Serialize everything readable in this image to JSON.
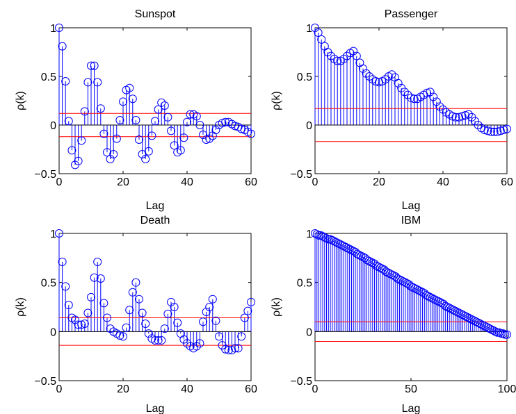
{
  "figure": {
    "line_color": "#0000ff",
    "bound_color": "#ff0000",
    "axis_color": "#000000",
    "background": "#ffffff"
  },
  "chart_data": [
    {
      "type": "stem",
      "title": "Sunspot",
      "xlabel": "Lag",
      "ylabel": "ρ(k)",
      "xlim": [
        0,
        60
      ],
      "ylim": [
        -0.5,
        1
      ],
      "xticks": [
        0,
        20,
        40,
        60
      ],
      "yticks": [
        -0.5,
        0,
        0.5,
        1
      ],
      "xtick_labels": [
        "0",
        "20",
        "40",
        "60"
      ],
      "ytick_labels": [
        "−0.5",
        "0",
        "0.5",
        "1"
      ],
      "confidence_bounds": [
        0.12,
        -0.12
      ],
      "x": [
        0,
        1,
        2,
        3,
        4,
        5,
        6,
        7,
        8,
        9,
        10,
        11,
        12,
        13,
        14,
        15,
        16,
        17,
        18,
        19,
        20,
        21,
        22,
        23,
        24,
        25,
        26,
        27,
        28,
        29,
        30,
        31,
        32,
        33,
        34,
        35,
        36,
        37,
        38,
        39,
        40,
        41,
        42,
        43,
        44,
        45,
        46,
        47,
        48,
        49,
        50,
        51,
        52,
        53,
        54,
        55,
        56,
        57,
        58,
        59,
        60
      ],
      "values": [
        1.0,
        0.81,
        0.45,
        0.04,
        -0.26,
        -0.41,
        -0.37,
        -0.16,
        0.14,
        0.44,
        0.61,
        0.61,
        0.44,
        0.17,
        -0.09,
        -0.28,
        -0.35,
        -0.3,
        -0.14,
        0.05,
        0.24,
        0.36,
        0.38,
        0.27,
        0.05,
        -0.15,
        -0.3,
        -0.35,
        -0.27,
        -0.11,
        0.04,
        0.16,
        0.23,
        0.2,
        0.08,
        -0.06,
        -0.21,
        -0.28,
        -0.26,
        -0.13,
        0.03,
        0.11,
        0.11,
        0.09,
        0.0,
        -0.1,
        -0.15,
        -0.14,
        -0.11,
        -0.05,
        0.0,
        0.02,
        0.03,
        0.03,
        0.01,
        -0.01,
        -0.02,
        -0.04,
        -0.05,
        -0.07,
        -0.09
      ]
    },
    {
      "type": "stem",
      "title": "Passenger",
      "xlabel": "Lag",
      "ylabel": "ρ(k)",
      "xlim": [
        0,
        60
      ],
      "ylim": [
        -0.5,
        1
      ],
      "xticks": [
        0,
        20,
        40,
        60
      ],
      "yticks": [
        -0.5,
        0,
        0.5,
        1
      ],
      "xtick_labels": [
        "0",
        "20",
        "40",
        "60"
      ],
      "ytick_labels": [
        "−0.5",
        "0",
        "0.5",
        "1"
      ],
      "confidence_bounds": [
        0.17,
        -0.17
      ],
      "x": [
        0,
        1,
        2,
        3,
        4,
        5,
        6,
        7,
        8,
        9,
        10,
        11,
        12,
        13,
        14,
        15,
        16,
        17,
        18,
        19,
        20,
        21,
        22,
        23,
        24,
        25,
        26,
        27,
        28,
        29,
        30,
        31,
        32,
        33,
        34,
        35,
        36,
        37,
        38,
        39,
        40,
        41,
        42,
        43,
        44,
        45,
        46,
        47,
        48,
        49,
        50,
        51,
        52,
        53,
        54,
        55,
        56,
        57,
        58,
        59,
        60
      ],
      "values": [
        1.0,
        0.95,
        0.88,
        0.81,
        0.75,
        0.71,
        0.68,
        0.66,
        0.66,
        0.68,
        0.71,
        0.74,
        0.76,
        0.71,
        0.64,
        0.58,
        0.53,
        0.5,
        0.47,
        0.45,
        0.44,
        0.45,
        0.47,
        0.5,
        0.52,
        0.49,
        0.43,
        0.38,
        0.34,
        0.31,
        0.28,
        0.27,
        0.27,
        0.29,
        0.31,
        0.33,
        0.34,
        0.29,
        0.24,
        0.19,
        0.16,
        0.13,
        0.11,
        0.09,
        0.08,
        0.08,
        0.09,
        0.1,
        0.11,
        0.08,
        0.04,
        0.0,
        -0.03,
        -0.05,
        -0.06,
        -0.07,
        -0.07,
        -0.07,
        -0.06,
        -0.05,
        -0.04
      ]
    },
    {
      "type": "stem",
      "title": "Death",
      "xlabel": "Lag",
      "ylabel": "ρ(k)",
      "xlim": [
        0,
        60
      ],
      "ylim": [
        -0.5,
        1
      ],
      "xticks": [
        0,
        20,
        40,
        60
      ],
      "yticks": [
        -0.5,
        0,
        0.5,
        1
      ],
      "xtick_labels": [
        "0",
        "20",
        "40",
        "60"
      ],
      "ytick_labels": [
        "−0.5",
        "0",
        "0.5",
        "1"
      ],
      "confidence_bounds": [
        0.14,
        -0.14
      ],
      "x": [
        0,
        1,
        2,
        3,
        4,
        5,
        6,
        7,
        8,
        9,
        10,
        11,
        12,
        13,
        14,
        15,
        16,
        17,
        18,
        19,
        20,
        21,
        22,
        23,
        24,
        25,
        26,
        27,
        28,
        29,
        30,
        31,
        32,
        33,
        34,
        35,
        36,
        37,
        38,
        39,
        40,
        41,
        42,
        43,
        44,
        45,
        46,
        47,
        48,
        49,
        50,
        51,
        52,
        53,
        54,
        55,
        56,
        57,
        58,
        59,
        60
      ],
      "values": [
        1.0,
        0.71,
        0.46,
        0.27,
        0.14,
        0.12,
        0.07,
        0.07,
        0.08,
        0.19,
        0.35,
        0.55,
        0.71,
        0.54,
        0.29,
        0.14,
        0.03,
        0.0,
        -0.02,
        -0.04,
        -0.05,
        0.04,
        0.22,
        0.4,
        0.5,
        0.33,
        0.19,
        0.08,
        -0.02,
        -0.07,
        -0.09,
        -0.09,
        -0.09,
        0.03,
        0.18,
        0.3,
        0.25,
        0.09,
        -0.02,
        -0.08,
        -0.12,
        -0.15,
        -0.17,
        -0.15,
        -0.12,
        0.1,
        0.2,
        0.25,
        0.33,
        0.11,
        -0.05,
        -0.14,
        -0.18,
        -0.19,
        -0.19,
        -0.17,
        -0.17,
        -0.05,
        0.14,
        0.21,
        0.3
      ]
    },
    {
      "type": "stem",
      "title": "IBM",
      "xlabel": "Lag",
      "ylabel": "ρ(k)",
      "xlim": [
        0,
        100
      ],
      "ylim": [
        -0.5,
        1
      ],
      "xticks": [
        0,
        50,
        100
      ],
      "yticks": [
        -0.5,
        0,
        0.5,
        1
      ],
      "xtick_labels": [
        "0",
        "50",
        "100"
      ],
      "ytick_labels": [
        "−0.5",
        "0",
        "0.5",
        "1"
      ],
      "confidence_bounds": [
        0.1,
        -0.1
      ],
      "x": [
        0,
        1,
        2,
        3,
        4,
        5,
        6,
        7,
        8,
        9,
        10,
        11,
        12,
        13,
        14,
        15,
        16,
        17,
        18,
        19,
        20,
        21,
        22,
        23,
        24,
        25,
        26,
        27,
        28,
        29,
        30,
        31,
        32,
        33,
        34,
        35,
        36,
        37,
        38,
        39,
        40,
        41,
        42,
        43,
        44,
        45,
        46,
        47,
        48,
        49,
        50,
        51,
        52,
        53,
        54,
        55,
        56,
        57,
        58,
        59,
        60,
        61,
        62,
        63,
        64,
        65,
        66,
        67,
        68,
        69,
        70,
        71,
        72,
        73,
        74,
        75,
        76,
        77,
        78,
        79,
        80,
        81,
        82,
        83,
        84,
        85,
        86,
        87,
        88,
        89,
        90,
        91,
        92,
        93,
        94,
        95,
        96,
        97,
        98,
        99,
        100
      ],
      "values": [
        1.0,
        0.99,
        0.98,
        0.98,
        0.97,
        0.96,
        0.95,
        0.94,
        0.94,
        0.93,
        0.92,
        0.91,
        0.9,
        0.89,
        0.88,
        0.87,
        0.86,
        0.85,
        0.84,
        0.83,
        0.82,
        0.81,
        0.79,
        0.78,
        0.77,
        0.76,
        0.75,
        0.73,
        0.72,
        0.71,
        0.7,
        0.69,
        0.67,
        0.66,
        0.65,
        0.64,
        0.63,
        0.61,
        0.6,
        0.59,
        0.58,
        0.57,
        0.56,
        0.54,
        0.53,
        0.52,
        0.51,
        0.5,
        0.49,
        0.48,
        0.46,
        0.45,
        0.44,
        0.43,
        0.42,
        0.41,
        0.4,
        0.39,
        0.37,
        0.36,
        0.35,
        0.34,
        0.33,
        0.32,
        0.31,
        0.3,
        0.29,
        0.28,
        0.26,
        0.25,
        0.24,
        0.23,
        0.22,
        0.21,
        0.2,
        0.19,
        0.18,
        0.17,
        0.16,
        0.15,
        0.14,
        0.13,
        0.12,
        0.11,
        0.1,
        0.09,
        0.08,
        0.07,
        0.06,
        0.05,
        0.04,
        0.03,
        0.02,
        0.01,
        0.0,
        -0.01,
        -0.01,
        -0.02,
        -0.02,
        -0.03,
        -0.03
      ]
    }
  ]
}
